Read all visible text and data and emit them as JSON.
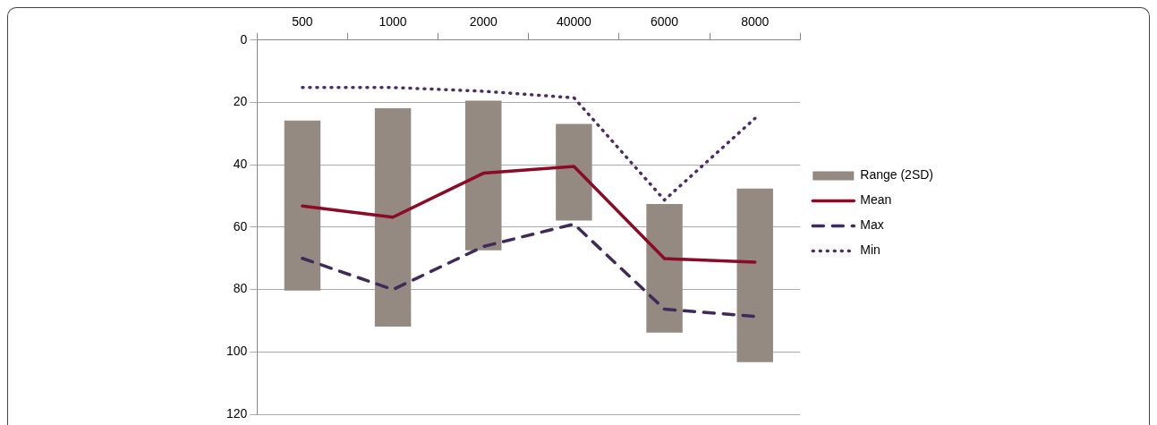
{
  "chart_data": {
    "type": "bar",
    "categories": [
      "500",
      "1000",
      "2000",
      "40000",
      "6000",
      "8000"
    ],
    "series": [
      {
        "name": "Range (2SD)",
        "color": "#948a82",
        "base": [
          25.8,
          21.9,
          19.4,
          26.9,
          52.6,
          47.6
        ],
        "values": [
          54.5,
          70,
          48,
          31,
          41.2,
          55.7
        ]
      },
      {
        "name": "Mean",
        "type": "line",
        "color": "#8b0a25",
        "line_style": "solid",
        "values": [
          53.2,
          56.8,
          42.7,
          40.5,
          70.1,
          71.2
        ]
      },
      {
        "name": "Max",
        "type": "line",
        "color": "#3f2a5a",
        "line_style": "dashed",
        "values": [
          70,
          80,
          66.2,
          59,
          86.3,
          88.6
        ]
      },
      {
        "name": "Min",
        "type": "line",
        "color": "#4b2e62",
        "line_style": "dotted",
        "values": [
          15.2,
          15.2,
          16.4,
          18.5,
          51.3,
          25.1
        ]
      }
    ],
    "ylim": [
      120,
      0
    ],
    "yticks": [
      0,
      20,
      40,
      60,
      80,
      100,
      120
    ],
    "grid": "y",
    "legend": "right",
    "marker": "none"
  }
}
